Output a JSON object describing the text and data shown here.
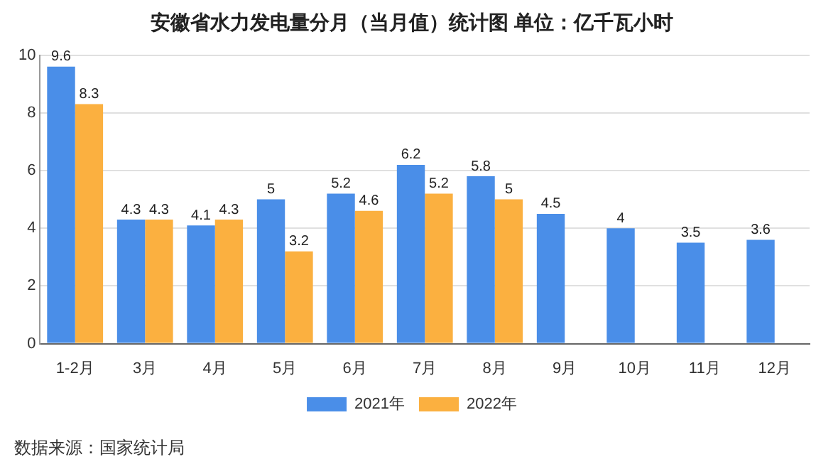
{
  "chart_data": {
    "type": "bar",
    "title": "安徽省水力发电量分月（当月值）统计图 单位：亿千瓦小时",
    "categories": [
      "1-2月",
      "3月",
      "4月",
      "5月",
      "6月",
      "7月",
      "8月",
      "9月",
      "10月",
      "11月",
      "12月"
    ],
    "series": [
      {
        "name": "2021年",
        "color": "#4a8ee8",
        "values": [
          9.6,
          4.3,
          4.1,
          5,
          5.2,
          6.2,
          5.8,
          4.5,
          4,
          3.5,
          3.6
        ]
      },
      {
        "name": "2022年",
        "color": "#fbb040",
        "values": [
          8.3,
          4.3,
          4.3,
          3.2,
          4.6,
          5.2,
          5,
          null,
          null,
          null,
          null
        ]
      }
    ],
    "ylim": [
      0,
      10
    ],
    "yticks": [
      0,
      2,
      4,
      6,
      8,
      10
    ],
    "grid": "y",
    "legend": "bottom",
    "data_labels": true,
    "annotations": [
      "数据来源：国家统计局"
    ]
  }
}
